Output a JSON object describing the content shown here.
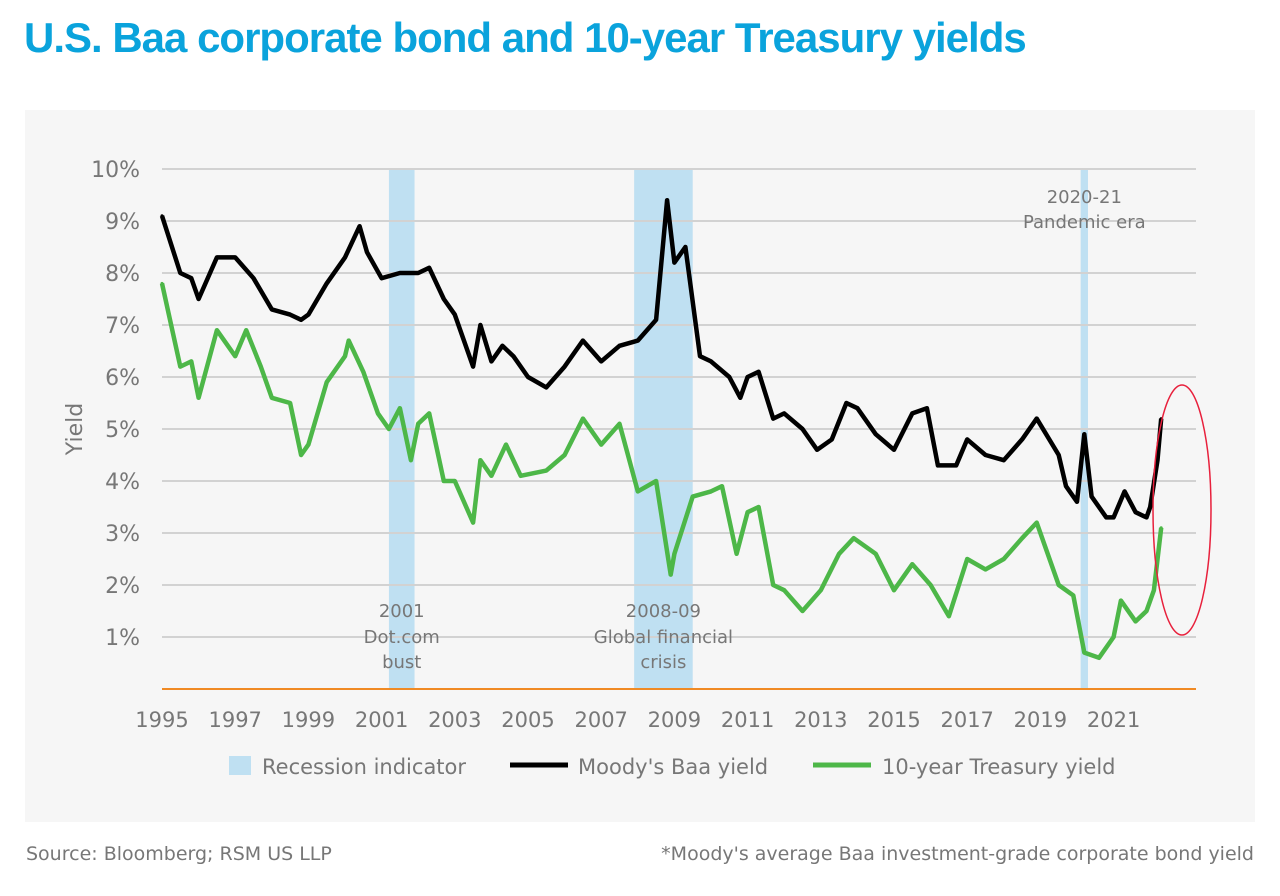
{
  "title": "U.S. Baa corporate bond and 10-year Treasury yields",
  "footer": {
    "source": "Source: Bloomberg; RSM US LLP",
    "note": "*Moody's average Baa investment-grade corporate bond yield"
  },
  "chart_data": {
    "type": "line",
    "title": "U.S. Baa corporate bond and 10-year Treasury yields",
    "ylabel": "Yield",
    "xlabel": "",
    "ylim": [
      0,
      10
    ],
    "xlim": [
      1995,
      2022.3
    ],
    "yticks": [
      "1%",
      "2%",
      "3%",
      "4%",
      "5%",
      "6%",
      "7%",
      "8%",
      "9%",
      "10%"
    ],
    "xticks": [
      "1995",
      "1997",
      "1999",
      "2001",
      "2003",
      "2005",
      "2007",
      "2009",
      "2011",
      "2013",
      "2015",
      "2017",
      "2019",
      "2021"
    ],
    "grid": true,
    "legend_position": "bottom",
    "colors": {
      "baa": "#000000",
      "treasury": "#4db748",
      "recession": "#bfe0f2",
      "zero_line": "#f08a24",
      "highlight": "#e8203c",
      "title": "#0aa3dc"
    },
    "legend": [
      "Recession indicator",
      "Moody's Baa yield",
      "10-year Treasury yield"
    ],
    "recessions": [
      {
        "start": 2001.2,
        "end": 2001.9,
        "label": [
          "2001",
          "Dot.com",
          "bust"
        ]
      },
      {
        "start": 2007.9,
        "end": 2009.5,
        "label": [
          "2008-09",
          "Global financial",
          "crisis"
        ]
      },
      {
        "start": 2020.1,
        "end": 2020.3,
        "label": [
          "2020-21",
          "Pandemic era"
        ]
      }
    ],
    "series": [
      {
        "name": "Moody's Baa yield",
        "x": [
          1995.0,
          1995.5,
          1995.8,
          1996.0,
          1996.5,
          1997.0,
          1997.5,
          1998.0,
          1998.5,
          1998.8,
          1999.0,
          1999.5,
          2000.0,
          2000.4,
          2000.6,
          2001.0,
          2001.5,
          2002.0,
          2002.3,
          2002.7,
          2003.0,
          2003.5,
          2003.7,
          2004.0,
          2004.3,
          2004.6,
          2005.0,
          2005.5,
          2006.0,
          2006.5,
          2007.0,
          2007.5,
          2008.0,
          2008.5,
          2008.8,
          2009.0,
          2009.3,
          2009.7,
          2010.0,
          2010.5,
          2010.8,
          2011.0,
          2011.3,
          2011.7,
          2012.0,
          2012.5,
          2012.9,
          2013.3,
          2013.7,
          2014.0,
          2014.5,
          2015.0,
          2015.5,
          2015.9,
          2016.2,
          2016.7,
          2017.0,
          2017.5,
          2018.0,
          2018.5,
          2018.9,
          2019.5,
          2019.7,
          2020.0,
          2020.2,
          2020.4,
          2020.8,
          2021.0,
          2021.3,
          2021.6,
          2021.9,
          2022.0,
          2022.2,
          2022.3
        ],
        "values": [
          9.1,
          8.0,
          7.9,
          7.5,
          8.3,
          8.3,
          7.9,
          7.3,
          7.2,
          7.1,
          7.2,
          7.8,
          8.3,
          8.9,
          8.4,
          7.9,
          8.0,
          8.0,
          8.1,
          7.5,
          7.2,
          6.2,
          7.0,
          6.3,
          6.6,
          6.4,
          6.0,
          5.8,
          6.2,
          6.7,
          6.3,
          6.6,
          6.7,
          7.1,
          9.4,
          8.2,
          8.5,
          6.4,
          6.3,
          6.0,
          5.6,
          6.0,
          6.1,
          5.2,
          5.3,
          5.0,
          4.6,
          4.8,
          5.5,
          5.4,
          4.9,
          4.6,
          5.3,
          5.4,
          4.3,
          4.3,
          4.8,
          4.5,
          4.4,
          4.8,
          5.2,
          4.5,
          3.9,
          3.6,
          4.9,
          3.7,
          3.3,
          3.3,
          3.8,
          3.4,
          3.3,
          3.5,
          4.4,
          5.2
        ]
      },
      {
        "name": "10-year Treasury yield",
        "x": [
          1995.0,
          1995.5,
          1995.8,
          1996.0,
          1996.5,
          1997.0,
          1997.3,
          1997.7,
          1998.0,
          1998.5,
          1998.8,
          1999.0,
          1999.5,
          2000.0,
          2000.1,
          2000.5,
          2000.9,
          2001.2,
          2001.5,
          2001.8,
          2002.0,
          2002.3,
          2002.7,
          2003.0,
          2003.5,
          2003.7,
          2004.0,
          2004.4,
          2004.8,
          2005.5,
          2006.0,
          2006.5,
          2007.0,
          2007.5,
          2008.0,
          2008.5,
          2008.9,
          2009.0,
          2009.5,
          2010.0,
          2010.3,
          2010.7,
          2011.0,
          2011.3,
          2011.7,
          2012.0,
          2012.5,
          2013.0,
          2013.5,
          2013.9,
          2014.5,
          2015.0,
          2015.5,
          2016.0,
          2016.5,
          2017.0,
          2017.5,
          2018.0,
          2018.5,
          2018.9,
          2019.5,
          2019.9,
          2020.2,
          2020.6,
          2021.0,
          2021.2,
          2021.6,
          2021.9,
          2022.1,
          2022.3
        ],
        "values": [
          7.8,
          6.2,
          6.3,
          5.6,
          6.9,
          6.4,
          6.9,
          6.2,
          5.6,
          5.5,
          4.5,
          4.7,
          5.9,
          6.4,
          6.7,
          6.1,
          5.3,
          5.0,
          5.4,
          4.4,
          5.1,
          5.3,
          4.0,
          4.0,
          3.2,
          4.4,
          4.1,
          4.7,
          4.1,
          4.2,
          4.5,
          5.2,
          4.7,
          5.1,
          3.8,
          4.0,
          2.2,
          2.6,
          3.7,
          3.8,
          3.9,
          2.6,
          3.4,
          3.5,
          2.0,
          1.9,
          1.5,
          1.9,
          2.6,
          2.9,
          2.6,
          1.9,
          2.4,
          2.0,
          1.4,
          2.5,
          2.3,
          2.5,
          2.9,
          3.2,
          2.0,
          1.8,
          0.7,
          0.6,
          1.0,
          1.7,
          1.3,
          1.5,
          1.9,
          3.1
        ]
      }
    ]
  }
}
